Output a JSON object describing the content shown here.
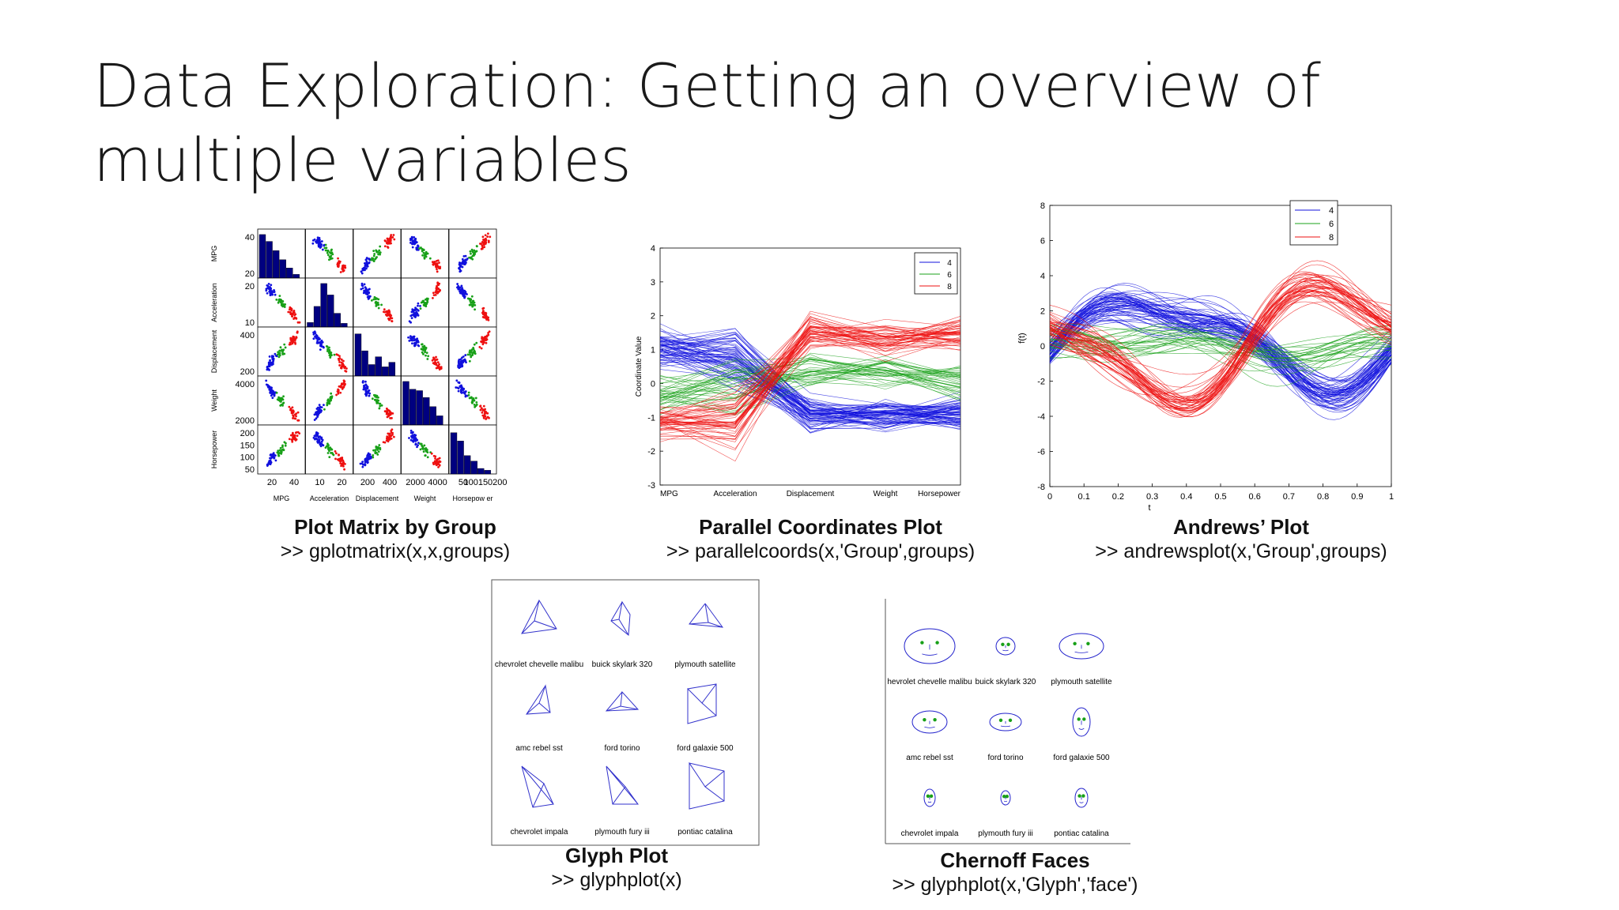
{
  "slide": {
    "title": "Data Exploration: Getting an overview of multiple variables"
  },
  "colors": {
    "group4": "#1010dd",
    "group6": "#18a018",
    "group8": "#ee1010",
    "hist": "#000080",
    "glyph": "#3333cc",
    "face": "#2222cc",
    "eyes": "#18a018"
  },
  "plot_matrix": {
    "title": "Plot Matrix by Group",
    "code": ">> gplotmatrix(x,x,groups)",
    "variables": [
      "MPG",
      "Acceleration",
      "Displacement",
      "Weight",
      "Horsepower"
    ],
    "xlabels": [
      "MPG",
      "Acceleration",
      "Displacement",
      "Weight",
      "Horsepow er"
    ],
    "yticks": [
      [
        "40",
        "20"
      ],
      [
        "20",
        "10"
      ],
      [
        "400",
        "200"
      ],
      [
        "4000",
        "2000"
      ],
      [
        "200",
        "150",
        "100",
        "50"
      ]
    ],
    "xticks": [
      [
        "20",
        "40"
      ],
      [
        "10",
        "20"
      ],
      [
        "200",
        "400"
      ],
      [
        "2000",
        "4000"
      ],
      [
        "50",
        "100150200"
      ]
    ]
  },
  "parallel_coords": {
    "title": "Parallel Coordinates Plot",
    "code": ">> parallelcoords(x,'Group',groups)",
    "ylabel": "Coordinate Value",
    "categories": [
      "MPG",
      "Acceleration",
      "Displacement",
      "Weight",
      "Horsepower"
    ],
    "yticks": [
      "4",
      "3",
      "2",
      "1",
      "0",
      "-1",
      "-2",
      "-3"
    ],
    "legend": [
      "4",
      "6",
      "8"
    ]
  },
  "andrews": {
    "title": "Andrews’ Plot",
    "code": ">> andrewsplot(x,'Group',groups)",
    "ylabel": "f(t)",
    "xlabel": "t",
    "yticks": [
      "8",
      "6",
      "4",
      "2",
      "0",
      "-2",
      "-4",
      "-6",
      "-8"
    ],
    "xticks": [
      "0",
      "0.1",
      "0.2",
      "0.3",
      "0.4",
      "0.5",
      "0.6",
      "0.7",
      "0.8",
      "0.9",
      "1"
    ],
    "legend": [
      "4",
      "6",
      "8"
    ]
  },
  "glyph": {
    "title": "Glyph Plot",
    "code": ">> glyphplot(x)",
    "labels": [
      "chevrolet chevelle malibu",
      "buick skylark 320",
      "plymouth satellite",
      "amc rebel sst",
      "ford torino",
      "ford galaxie 500",
      "chevrolet impala",
      "plymouth fury iii",
      "pontiac catalina"
    ]
  },
  "chernoff": {
    "title": "Chernoff Faces",
    "code": ">> glyphplot(x,'Glyph','face')",
    "labels": [
      "hevrolet chevelle malibu",
      "buick skylark 320",
      "plymouth satellite",
      "amc rebel sst",
      "ford torino",
      "ford galaxie 500",
      "chevrolet impala",
      "plymouth fury iii",
      "pontiac catalina"
    ]
  }
}
